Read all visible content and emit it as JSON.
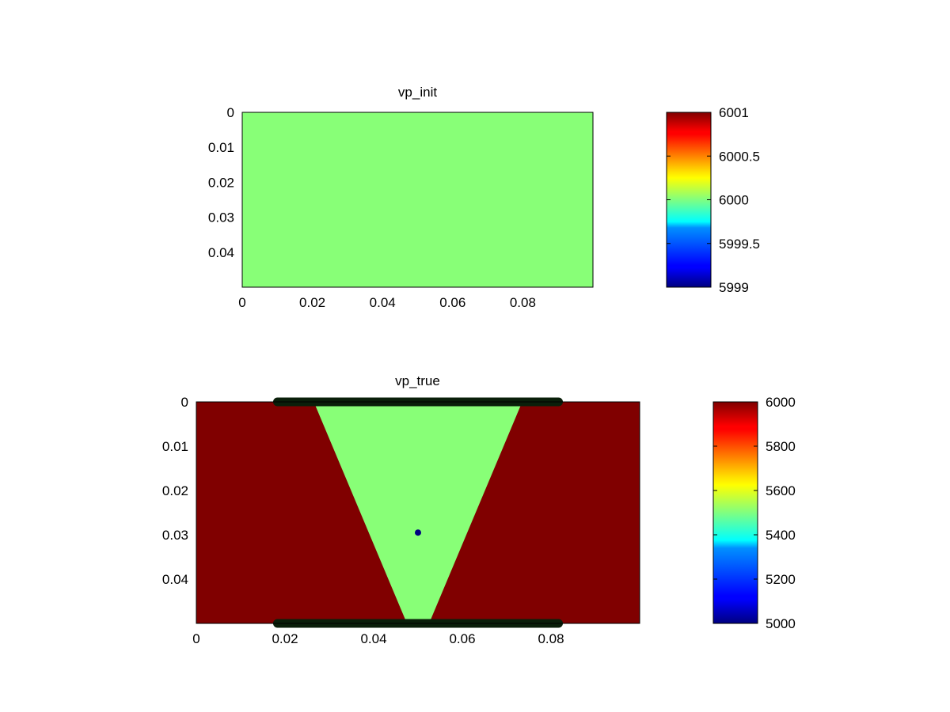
{
  "chart_data": [
    {
      "type": "heatmap",
      "title": "vp_init",
      "xlim": [
        0,
        0.1
      ],
      "ylim": [
        0,
        0.05
      ],
      "y_direction": "down",
      "x_ticks": [
        "0",
        "0.02",
        "0.04",
        "0.06",
        "0.08"
      ],
      "x_tick_values": [
        0,
        0.02,
        0.04,
        0.06,
        0.08
      ],
      "y_ticks": [
        "0",
        "0.01",
        "0.02",
        "0.03",
        "0.04"
      ],
      "y_tick_values": [
        0,
        0.01,
        0.02,
        0.03,
        0.04
      ],
      "colormap": "jet",
      "clim": [
        5999,
        6001
      ],
      "colorbar_ticks": [
        "6001",
        "6000.5",
        "6000",
        "5999.5",
        "5999"
      ],
      "colorbar_tick_values": [
        6001,
        6000.5,
        6000,
        5999.5,
        5999
      ],
      "field": {
        "uniform_value": 6000,
        "color": "#88ff77"
      }
    },
    {
      "type": "heatmap",
      "title": "vp_true",
      "xlim": [
        0,
        0.1
      ],
      "ylim": [
        0,
        0.05
      ],
      "y_direction": "down",
      "x_ticks": [
        "0",
        "0.02",
        "0.04",
        "0.06",
        "0.08"
      ],
      "x_tick_values": [
        0,
        0.02,
        0.04,
        0.06,
        0.08
      ],
      "y_ticks": [
        "0",
        "0.01",
        "0.02",
        "0.03",
        "0.04"
      ],
      "y_tick_values": [
        0,
        0.01,
        0.02,
        0.03,
        0.04
      ],
      "colormap": "jet",
      "clim": [
        5000,
        6000
      ],
      "colorbar_ticks": [
        "6000",
        "5800",
        "5600",
        "5400",
        "5200",
        "5000"
      ],
      "colorbar_tick_values": [
        6000,
        5800,
        5600,
        5400,
        5200,
        5000
      ],
      "background": {
        "value": 6000,
        "color": "#800000"
      },
      "wedge": {
        "value": 5500,
        "color": "#88ff77",
        "top_x": [
          0.0265,
          0.0735
        ],
        "top_z": 0,
        "bottom_x": [
          0.0475,
          0.0525
        ],
        "bottom_z": 0.05
      },
      "source_point": {
        "x": 0.05,
        "z": 0.0295,
        "color": "#000080"
      },
      "receiver_lines": [
        {
          "z": 0,
          "x_range": [
            0.0183,
            0.0817
          ],
          "color": "#0a1f0a"
        },
        {
          "z": 0.05,
          "x_range": [
            0.0183,
            0.0817
          ],
          "color": "#0a1f0a"
        }
      ]
    }
  ]
}
